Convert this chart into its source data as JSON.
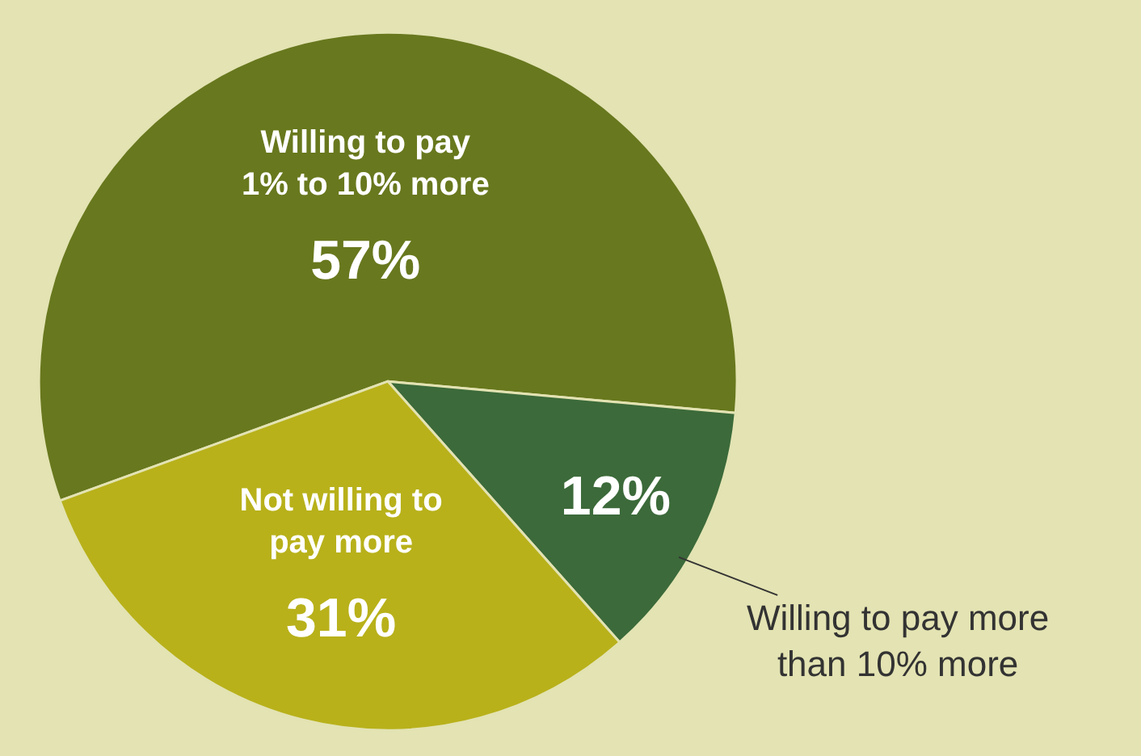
{
  "chart_data": {
    "type": "pie",
    "categories": [
      "Willing to pay 1% to 10% more",
      "Willing to pay more than 10% more",
      "Not willing to pay more"
    ],
    "values": [
      57,
      12,
      31
    ],
    "value_labels": [
      "57%",
      "12%",
      "31%"
    ],
    "colors": [
      "#68781e",
      "#3c6a3a",
      "#b8b11a"
    ],
    "legend": false
  }
}
